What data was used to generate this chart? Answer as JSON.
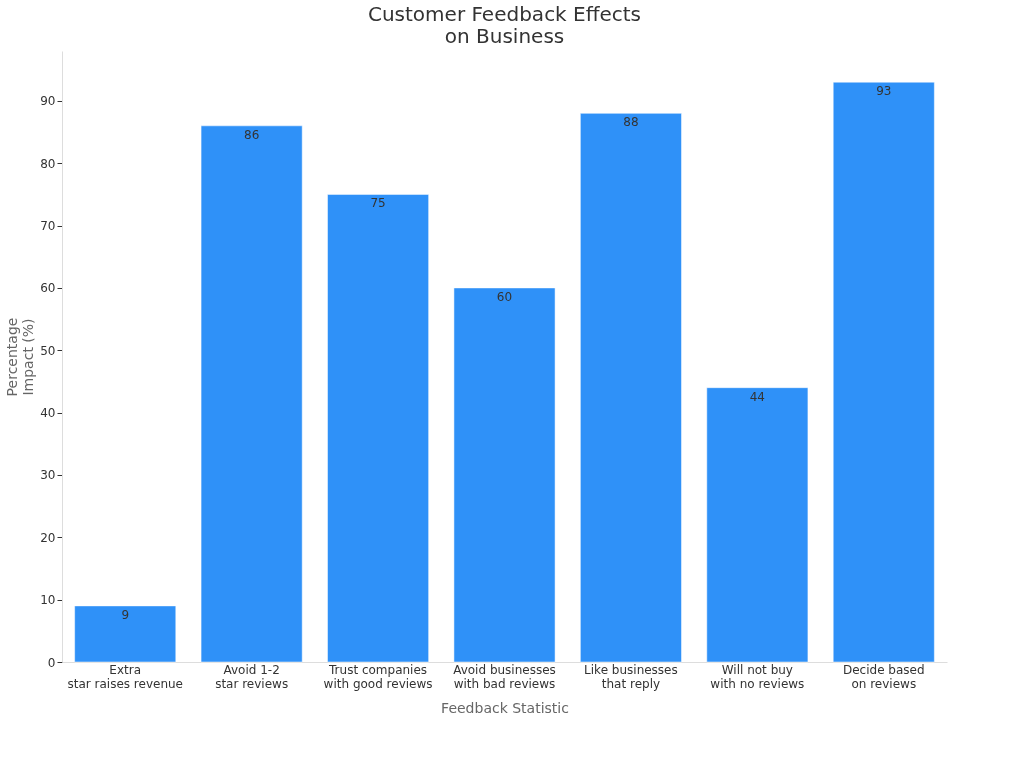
{
  "chart_data": {
    "type": "bar",
    "title": "Customer Feedback Effects\non Business",
    "xlabel": "Feedback Statistic",
    "ylabel": "Percentage\nImpact (%)",
    "categories": [
      "Extra\nstar raises revenue",
      "Avoid 1-2\nstar reviews",
      "Trust companies\nwith good reviews",
      "Avoid businesses\nwith bad reviews",
      "Like businesses\nthat reply",
      "Will not buy\nwith no reviews",
      "Decide based\non reviews"
    ],
    "values": [
      9,
      86,
      75,
      60,
      88,
      44,
      93
    ],
    "color": "#2f91f8",
    "ylim": [
      0,
      98
    ],
    "yticks": [
      0,
      10,
      20,
      30,
      40,
      50,
      60,
      70,
      80,
      90
    ],
    "grid": false,
    "data_labels": true
  }
}
